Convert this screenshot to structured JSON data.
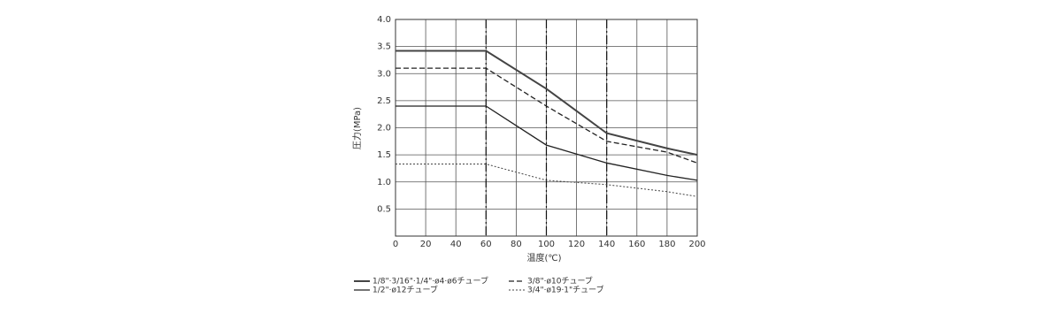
{
  "chart_data": {
    "type": "line",
    "x_label": "温度(℃)",
    "y_label": "圧力(MPa)",
    "x": [
      0,
      60,
      100,
      140,
      180,
      200
    ],
    "series": [
      {
        "name": "1/8\"·3/16\"·1/4\"·ø4·ø6チューブ",
        "color": "#444444",
        "line_style": "thick",
        "values": [
          3.42,
          3.42,
          2.72,
          1.9,
          1.62,
          1.5
        ]
      },
      {
        "name": "3/8\"·ø10チューブ",
        "color": "#222222",
        "line_style": "dashed",
        "values": [
          3.1,
          3.1,
          2.4,
          1.75,
          1.55,
          1.35
        ]
      },
      {
        "name": "1/2\"·ø12チューブ",
        "color": "#222222",
        "line_style": "solid",
        "values": [
          2.4,
          2.4,
          1.68,
          1.35,
          1.12,
          1.03
        ]
      },
      {
        "name": "3/4\"·ø19·1\"チューブ",
        "color": "#444444",
        "line_style": "dotted",
        "values": [
          1.33,
          1.33,
          1.03,
          0.95,
          0.82,
          0.73
        ]
      }
    ],
    "xlim": [
      0,
      200
    ],
    "xticks": [
      0,
      20,
      40,
      60,
      80,
      100,
      120,
      140,
      160,
      180,
      200
    ],
    "ylim": [
      0,
      4
    ],
    "yticks": [
      0.5,
      {
        "value": 1,
        "label": "1.0"
      },
      1.5,
      {
        "value": 2,
        "label": "2.0"
      },
      2.5,
      {
        "value": 3,
        "label": "3.0"
      },
      3.5,
      {
        "value": 4,
        "label": "4.0"
      }
    ],
    "reference_lines": [
      60,
      100,
      140
    ],
    "grid": true
  }
}
